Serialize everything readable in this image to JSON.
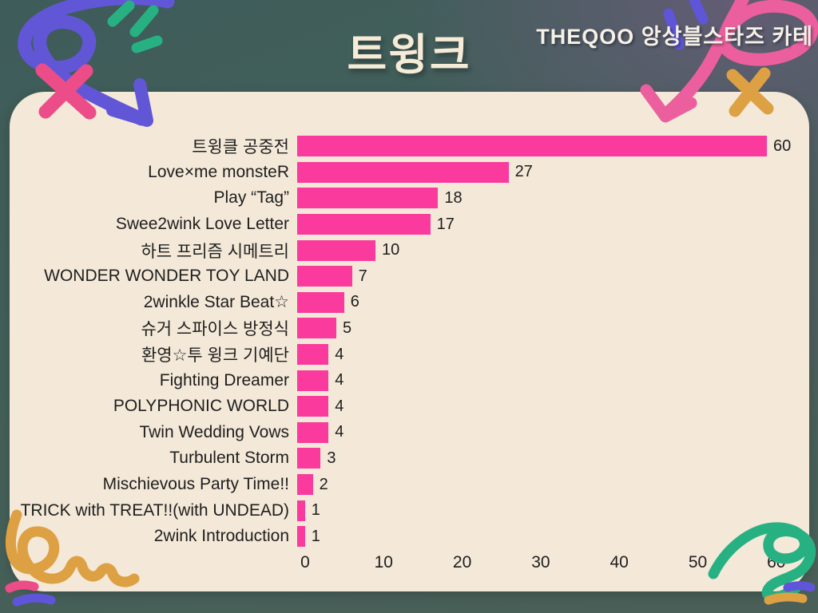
{
  "header": {
    "title": "트윙크",
    "source_label": "THEQOO 앙상블스타즈 카테"
  },
  "chart_data": {
    "type": "bar",
    "orientation": "horizontal",
    "title": "트윙크",
    "xlabel": "",
    "ylabel": "",
    "categories": [
      "트윙클 공중전",
      "Love×me monsteR",
      "Play “Tag”",
      "Swee2wink Love Letter",
      "하트 프리즘 시메트리",
      "WONDER WONDER TOY LAND",
      "2winkle Star Beat☆",
      "슈거 스파이스 방정식",
      "환영☆투 윙크 기예단",
      "Fighting Dreamer",
      "POLYPHONIC WORLD",
      "Twin Wedding Vows",
      "Turbulent Storm",
      "Mischievous Party Time!!",
      "TRICK with TREAT!!(with UNDEAD)",
      "2wink Introduction"
    ],
    "values": [
      60,
      27,
      18,
      17,
      10,
      7,
      6,
      5,
      4,
      4,
      4,
      4,
      3,
      2,
      1,
      1
    ],
    "x_ticks": [
      0,
      10,
      20,
      30,
      40,
      50,
      60
    ],
    "xlim": [
      0,
      60
    ],
    "grid": false,
    "legend": false,
    "value_labels_shown": true,
    "bar_color": "#fa3a9c"
  },
  "colors": {
    "background_teal": "#446059",
    "background_purple": "#605a6e",
    "card": "#f4e9d8",
    "bar": "#fa3a9c",
    "text_dark": "#1e1e1e",
    "title_cream": "#f6ebd7",
    "doodle_purple": "#6157d6",
    "doodle_blue_purple": "#5f55d8",
    "doodle_green": "#27b183",
    "doodle_pink": "#ec4d89",
    "doodle_pink_arrow": "#ec5f9e",
    "doodle_orange": "#dda043"
  },
  "doodles": [
    "purple-loop-arrow",
    "green-burst",
    "pink-x",
    "pink-curved-arrow",
    "purple-dashes",
    "orange-x",
    "orange-squiggle",
    "pink-dash",
    "blue-dash",
    "green-squiggle",
    "blue-dash-right",
    "orange-dash-right"
  ]
}
